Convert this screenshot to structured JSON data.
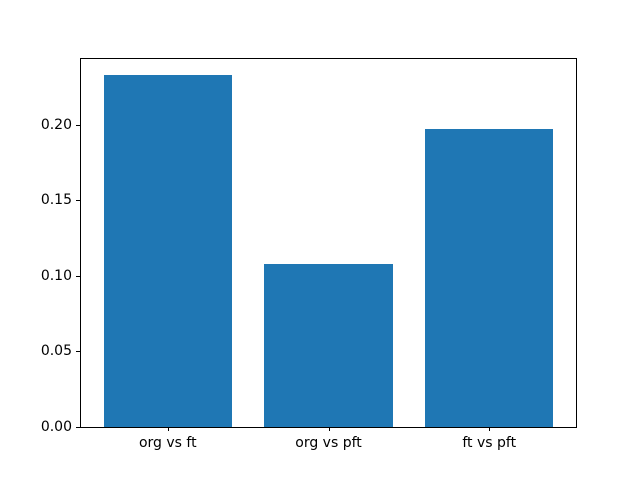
{
  "chart_data": {
    "type": "bar",
    "title": "",
    "xlabel": "",
    "ylabel": "",
    "categories": [
      "org vs ft",
      "org vs pft",
      "ft vs pft"
    ],
    "values": [
      0.233,
      0.108,
      0.197
    ],
    "ylim": [
      0,
      0.2436
    ],
    "y_ticks": [
      0.0,
      0.05,
      0.1,
      0.15,
      0.2
    ],
    "y_tick_labels": [
      "0.00",
      "0.05",
      "0.10",
      "0.15",
      "0.20"
    ],
    "bar_color": "#1f77b4",
    "bar_width_fraction": 0.8,
    "x_margin_fraction": 0.05,
    "grid": false,
    "legend": null,
    "background_color": "#ffffff",
    "spine_color": "#000000",
    "text_color": "#000000"
  }
}
